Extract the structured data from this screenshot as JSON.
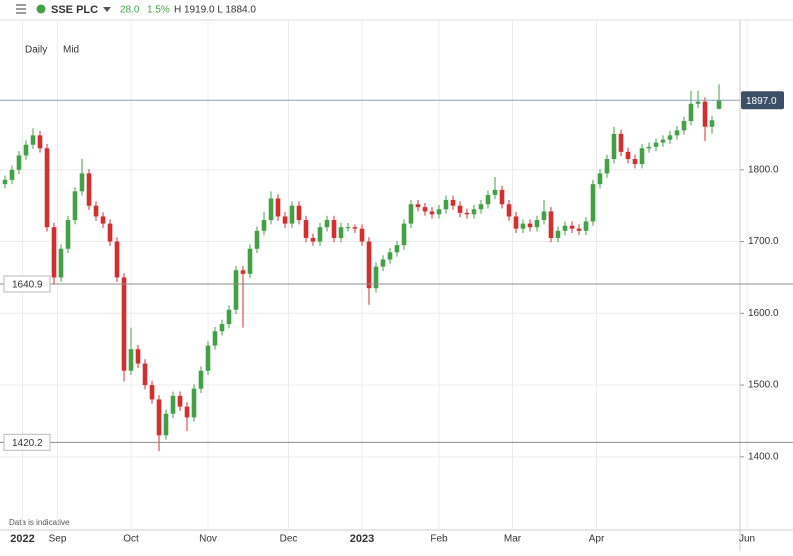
{
  "header": {
    "symbol": "SSE PLC",
    "change": "28.0",
    "change_pct": "1.5%",
    "high_low": "H 1919.0 L 1884.0"
  },
  "chart_data": {
    "type": "candlestick",
    "interval": "Daily",
    "price_mode": "Mid",
    "note": "Data is indicative",
    "up_color": "#43a047",
    "down_color": "#d32f2f",
    "grid": true,
    "open": [
      1780,
      1786,
      1800,
      1820,
      1835,
      1848,
      1830,
      1720,
      1650,
      1690,
      1730,
      1770,
      1795,
      1750,
      1735,
      1725,
      1700,
      1650,
      1520,
      1550,
      1530,
      1500,
      1480,
      1430,
      1460,
      1485,
      1470,
      1455,
      1495,
      1520,
      1555,
      1575,
      1585,
      1605,
      1660,
      1655,
      1690,
      1715,
      1730,
      1760,
      1735,
      1725,
      1750,
      1730,
      1705,
      1700,
      1720,
      1730,
      1705,
      1720,
      1720,
      1718,
      1700,
      1635,
      1665,
      1675,
      1685,
      1695,
      1725,
      1752,
      1748,
      1742,
      1738,
      1745,
      1758,
      1750,
      1740,
      1738,
      1745,
      1752,
      1765,
      1772,
      1752,
      1735,
      1718,
      1725,
      1720,
      1730,
      1742,
      1705,
      1715,
      1722,
      1718,
      1715,
      1728,
      1780,
      1795,
      1815,
      1850,
      1825,
      1815,
      1808,
      1830,
      1832,
      1838,
      1842,
      1848,
      1855,
      1868,
      1892,
      1895,
      1860,
      1885
    ],
    "high": [
      1792,
      1806,
      1826,
      1841,
      1858,
      1854,
      1836,
      1726,
      1696,
      1736,
      1776,
      1815,
      1801,
      1756,
      1741,
      1731,
      1706,
      1656,
      1580,
      1556,
      1536,
      1506,
      1486,
      1466,
      1491,
      1491,
      1476,
      1501,
      1526,
      1561,
      1581,
      1591,
      1611,
      1666,
      1666,
      1696,
      1721,
      1741,
      1770,
      1766,
      1741,
      1756,
      1756,
      1736,
      1711,
      1726,
      1736,
      1736,
      1726,
      1726,
      1724,
      1724,
      1706,
      1671,
      1681,
      1691,
      1701,
      1731,
      1758,
      1758,
      1754,
      1748,
      1751,
      1764,
      1764,
      1756,
      1746,
      1751,
      1758,
      1771,
      1790,
      1778,
      1758,
      1741,
      1731,
      1731,
      1736,
      1758,
      1748,
      1721,
      1728,
      1728,
      1724,
      1734,
      1786,
      1801,
      1821,
      1860,
      1856,
      1831,
      1821,
      1836,
      1838,
      1844,
      1848,
      1854,
      1861,
      1874,
      1910,
      1910,
      1901,
      1875,
      1919
    ],
    "low": [
      1774,
      1780,
      1794,
      1814,
      1829,
      1824,
      1714,
      1640,
      1644,
      1684,
      1724,
      1764,
      1744,
      1729,
      1719,
      1694,
      1644,
      1505,
      1514,
      1524,
      1494,
      1474,
      1408,
      1424,
      1454,
      1464,
      1436,
      1449,
      1489,
      1514,
      1549,
      1569,
      1579,
      1599,
      1580,
      1649,
      1684,
      1709,
      1724,
      1729,
      1719,
      1719,
      1724,
      1699,
      1694,
      1694,
      1714,
      1699,
      1699,
      1714,
      1712,
      1694,
      1612,
      1629,
      1659,
      1669,
      1679,
      1689,
      1719,
      1742,
      1736,
      1732,
      1732,
      1739,
      1744,
      1734,
      1732,
      1732,
      1739,
      1746,
      1759,
      1746,
      1729,
      1712,
      1712,
      1714,
      1714,
      1724,
      1699,
      1699,
      1709,
      1712,
      1709,
      1709,
      1722,
      1774,
      1789,
      1809,
      1819,
      1809,
      1802,
      1802,
      1824,
      1826,
      1832,
      1836,
      1842,
      1849,
      1862,
      1886,
      1840,
      1850,
      1884
    ],
    "close": [
      1786,
      1800,
      1820,
      1835,
      1848,
      1830,
      1720,
      1650,
      1690,
      1730,
      1770,
      1795,
      1750,
      1735,
      1725,
      1700,
      1650,
      1520,
      1550,
      1530,
      1500,
      1480,
      1430,
      1460,
      1485,
      1470,
      1455,
      1495,
      1520,
      1555,
      1575,
      1585,
      1605,
      1660,
      1655,
      1690,
      1715,
      1730,
      1760,
      1735,
      1725,
      1750,
      1730,
      1705,
      1700,
      1720,
      1730,
      1705,
      1720,
      1720,
      1718,
      1700,
      1635,
      1665,
      1675,
      1685,
      1695,
      1725,
      1752,
      1748,
      1742,
      1738,
      1745,
      1758,
      1750,
      1740,
      1738,
      1745,
      1752,
      1765,
      1772,
      1752,
      1735,
      1718,
      1725,
      1720,
      1730,
      1742,
      1705,
      1715,
      1722,
      1718,
      1715,
      1728,
      1780,
      1795,
      1815,
      1850,
      1825,
      1815,
      1808,
      1830,
      1832,
      1838,
      1842,
      1848,
      1855,
      1868,
      1892,
      1895,
      1860,
      1869,
      1897
    ],
    "xlim": [
      0,
      106
    ],
    "xticks": [
      {
        "value": 2.5,
        "label": "2022"
      },
      {
        "value": 7.5,
        "label": "Sep"
      },
      {
        "value": 18,
        "label": "Oct"
      },
      {
        "value": 29,
        "label": "Nov"
      },
      {
        "value": 40.5,
        "label": "Dec"
      },
      {
        "value": 51,
        "label": "2023"
      },
      {
        "value": 62,
        "label": "Feb"
      },
      {
        "value": 72.5,
        "label": "Mar"
      },
      {
        "value": 84.5,
        "label": "Apr"
      },
      {
        "value": 106,
        "label": "Jun"
      }
    ],
    "ylim": [
      1298,
      2006
    ],
    "yticks": [
      {
        "value": 1400,
        "label": "1400.0"
      },
      {
        "value": 1500,
        "label": "1500.0"
      },
      {
        "value": 1600,
        "label": "1600.0"
      },
      {
        "value": 1700,
        "label": "1700.0"
      },
      {
        "value": 1800,
        "label": "1800.0"
      }
    ],
    "price_lines": [
      1640.9,
      1420.2
    ],
    "current_price": {
      "value": 1897,
      "label": "1897.0"
    }
  }
}
